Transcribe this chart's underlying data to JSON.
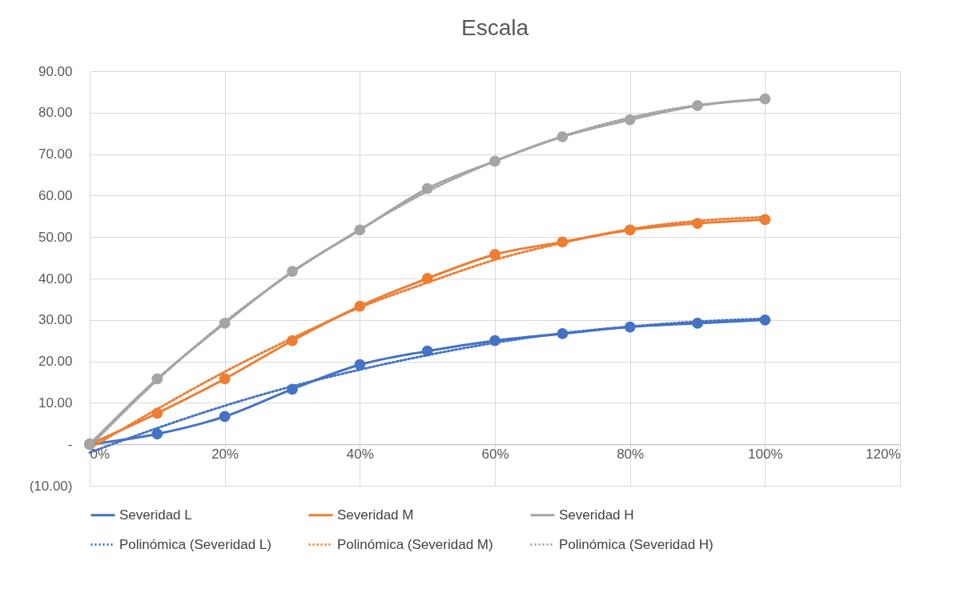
{
  "chart_data": {
    "type": "line",
    "title": "Escala",
    "x": [
      0,
      0.1,
      0.2,
      0.3,
      0.4,
      0.5,
      0.6,
      0.7,
      0.8,
      0.9,
      1.0
    ],
    "series": [
      {
        "name": "Severidad L",
        "color": "#4472c4",
        "marker": "circle",
        "line_style": "solid",
        "values": [
          0,
          2.5,
          6.7,
          13.3,
          19.2,
          22.5,
          25,
          26.7,
          28.3,
          29.2,
          30
        ]
      },
      {
        "name": "Severidad M",
        "color": "#ed7d31",
        "marker": "circle",
        "line_style": "solid",
        "values": [
          0,
          7.5,
          15.8,
          25,
          33.3,
          40,
          45.8,
          48.8,
          51.7,
          53.3,
          54.2
        ]
      },
      {
        "name": "Severidad H",
        "color": "#a5a5a5",
        "marker": "circle",
        "line_style": "solid",
        "values": [
          0,
          15.8,
          29.2,
          41.7,
          51.7,
          61.7,
          68.3,
          74.2,
          78.3,
          81.7,
          83.3
        ]
      },
      {
        "name": "Polinómica (Severidad L)",
        "color": "#4472c4",
        "marker": "none",
        "line_style": "dotted",
        "values": [
          -2,
          3.9,
          9.3,
          14,
          18,
          21.5,
          24.5,
          26.8,
          28.4,
          29.6,
          30.3
        ]
      },
      {
        "name": "Polinómica (Severidad M)",
        "color": "#ed7d31",
        "marker": "none",
        "line_style": "dotted",
        "values": [
          -1,
          8.5,
          17.5,
          25.6,
          33,
          39,
          44.5,
          48.6,
          51.9,
          53.9,
          54.8
        ]
      },
      {
        "name": "Polinómica (Severidad H)",
        "color": "#a5a5a5",
        "marker": "none",
        "line_style": "dotted",
        "values": [
          -0.5,
          15.5,
          29.5,
          41.5,
          51.8,
          61,
          68.3,
          74.3,
          78.8,
          81.8,
          83.3
        ]
      }
    ],
    "xlim": [
      0,
      1.2
    ],
    "xticks": [
      {
        "value": 0,
        "label": "0%"
      },
      {
        "value": 0.2,
        "label": "20%"
      },
      {
        "value": 0.4,
        "label": "40%"
      },
      {
        "value": 0.6,
        "label": "60%"
      },
      {
        "value": 0.8,
        "label": "80%"
      },
      {
        "value": 1.0,
        "label": "100%"
      },
      {
        "value": 1.2,
        "label": "120%"
      }
    ],
    "ylim": [
      -10,
      90
    ],
    "yticks": [
      {
        "value": -10,
        "label": "(10.00)"
      },
      {
        "value": 0,
        "label": "-"
      },
      {
        "value": 10,
        "label": "10.00"
      },
      {
        "value": 20,
        "label": "20.00"
      },
      {
        "value": 30,
        "label": "30.00"
      },
      {
        "value": 40,
        "label": "40.00"
      },
      {
        "value": 50,
        "label": "50.00"
      },
      {
        "value": 60,
        "label": "60.00"
      },
      {
        "value": 70,
        "label": "70.00"
      },
      {
        "value": 80,
        "label": "80.00"
      },
      {
        "value": 90,
        "label": "90.00"
      }
    ],
    "grid": true,
    "legend": "bottom"
  }
}
